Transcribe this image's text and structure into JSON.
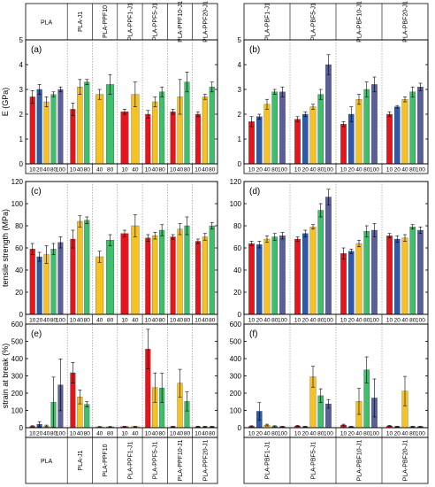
{
  "figure": {
    "left_groups": [
      "PLA",
      "PLA-J1",
      "PLA-PPF10",
      "PLA-PPF1-J1",
      "PLA-PPF5-J1",
      "PLA-PPF10-J1",
      "PLA-PPF20-J1"
    ],
    "right_groups": [
      "PLA-PBF1-J1",
      "PLA-PBF5-J1",
      "PLA-PBF10-J1",
      "PLA-PBF20-J1"
    ],
    "legend_colors": {
      "10": "#e8141c",
      "20": "#2e5aa8",
      "40": "#f7c21e",
      "80": "#3dbf6b",
      "100": "#5a5f9c"
    }
  },
  "chart_data": [
    {
      "type": "bar",
      "panel": "(a)",
      "ylabel": "E (GPa)",
      "ylim": [
        0,
        5
      ],
      "yticks": [
        0,
        1,
        2,
        3,
        4,
        5
      ],
      "groups": [
        {
          "name": "PLA",
          "bars": [
            {
              "x": "10",
              "v": 2.7,
              "e": 0.25
            },
            {
              "x": "20",
              "v": 3.0,
              "e": 0.2
            },
            {
              "x": "40",
              "v": 2.5,
              "e": 0.2
            },
            {
              "x": "80",
              "v": 2.8,
              "e": 0.1
            },
            {
              "x": "100",
              "v": 3.0,
              "e": 0.1
            }
          ]
        },
        {
          "name": "PLA-J1",
          "bars": [
            {
              "x": "10",
              "v": 2.2,
              "e": 0.25
            },
            {
              "x": "40",
              "v": 3.1,
              "e": 0.3
            },
            {
              "x": "80",
              "v": 3.3,
              "e": 0.1
            }
          ]
        },
        {
          "name": "PLA-PPF10",
          "bars": [
            {
              "x": "40",
              "v": 2.8,
              "e": 0.2
            },
            {
              "x": "80",
              "v": 3.2,
              "e": 0.4
            }
          ]
        },
        {
          "name": "PLA-PPF1-J1",
          "bars": [
            {
              "x": "10",
              "v": 2.1,
              "e": 0.1
            },
            {
              "x": "40",
              "v": 2.8,
              "e": 0.5
            }
          ]
        },
        {
          "name": "PLA-PPF5-J1",
          "bars": [
            {
              "x": "10",
              "v": 2.0,
              "e": 0.15
            },
            {
              "x": "40",
              "v": 2.5,
              "e": 0.2
            },
            {
              "x": "80",
              "v": 2.9,
              "e": 0.2
            }
          ]
        },
        {
          "name": "PLA-PPF10-J1",
          "bars": [
            {
              "x": "10",
              "v": 2.1,
              "e": 0.1
            },
            {
              "x": "40",
              "v": 2.7,
              "e": 0.7
            },
            {
              "x": "80",
              "v": 3.3,
              "e": 0.4
            }
          ]
        },
        {
          "name": "PLA-PPF20-J1",
          "bars": [
            {
              "x": "10",
              "v": 2.0,
              "e": 0.1
            },
            {
              "x": "40",
              "v": 2.7,
              "e": 0.1
            },
            {
              "x": "80",
              "v": 3.1,
              "e": 0.2
            }
          ]
        }
      ]
    },
    {
      "type": "bar",
      "panel": "(b)",
      "ylabel": "",
      "ylim": [
        0,
        5
      ],
      "yticks": [
        0,
        1,
        2,
        3,
        4,
        5
      ],
      "groups": [
        {
          "name": "PLA-PBF1-J1",
          "bars": [
            {
              "x": "10",
              "v": 1.7,
              "e": 0.2
            },
            {
              "x": "20",
              "v": 1.9,
              "e": 0.1
            },
            {
              "x": "40",
              "v": 2.4,
              "e": 0.2
            },
            {
              "x": "80",
              "v": 2.9,
              "e": 0.1
            },
            {
              "x": "100",
              "v": 2.9,
              "e": 0.2
            }
          ]
        },
        {
          "name": "PLA-PBF5-J1",
          "bars": [
            {
              "x": "10",
              "v": 1.8,
              "e": 0.1
            },
            {
              "x": "20",
              "v": 2.0,
              "e": 0.1
            },
            {
              "x": "40",
              "v": 2.3,
              "e": 0.1
            },
            {
              "x": "80",
              "v": 2.8,
              "e": 0.2
            },
            {
              "x": "100",
              "v": 4.0,
              "e": 0.4
            }
          ]
        },
        {
          "name": "PLA-PBF10-J1",
          "bars": [
            {
              "x": "10",
              "v": 1.6,
              "e": 0.1
            },
            {
              "x": "20",
              "v": 2.0,
              "e": 0.3
            },
            {
              "x": "40",
              "v": 2.6,
              "e": 0.2
            },
            {
              "x": "80",
              "v": 3.0,
              "e": 0.3
            },
            {
              "x": "100",
              "v": 3.2,
              "e": 0.3
            }
          ]
        },
        {
          "name": "PLA-PBF20-J1",
          "bars": [
            {
              "x": "10",
              "v": 2.0,
              "e": 0.1
            },
            {
              "x": "20",
              "v": 2.3,
              "e": 0.05
            },
            {
              "x": "40",
              "v": 2.6,
              "e": 0.1
            },
            {
              "x": "80",
              "v": 2.9,
              "e": 0.2
            },
            {
              "x": "100",
              "v": 3.1,
              "e": 0.15
            }
          ]
        }
      ]
    },
    {
      "type": "bar",
      "panel": "(c)",
      "ylabel": "tensile strength (MPa)",
      "ylim": [
        0,
        120
      ],
      "yticks": [
        0,
        20,
        40,
        60,
        80,
        100,
        120
      ],
      "groups": [
        {
          "name": "PLA",
          "bars": [
            {
              "x": "10",
              "v": 59,
              "e": 5
            },
            {
              "x": "20",
              "v": 52,
              "e": 4
            },
            {
              "x": "40",
              "v": 54,
              "e": 8
            },
            {
              "x": "80",
              "v": 59,
              "e": 5
            },
            {
              "x": "100",
              "v": 65,
              "e": 5
            }
          ]
        },
        {
          "name": "PLA-J1",
          "bars": [
            {
              "x": "10",
              "v": 68,
              "e": 8
            },
            {
              "x": "40",
              "v": 84,
              "e": 5
            },
            {
              "x": "80",
              "v": 85,
              "e": 3
            }
          ]
        },
        {
          "name": "PLA-PPF10",
          "bars": [
            {
              "x": "40",
              "v": 52,
              "e": 5
            },
            {
              "x": "80",
              "v": 67,
              "e": 5
            }
          ]
        },
        {
          "name": "PLA-PPF1-J1",
          "bars": [
            {
              "x": "10",
              "v": 73,
              "e": 3
            },
            {
              "x": "40",
              "v": 80,
              "e": 10
            }
          ]
        },
        {
          "name": "PLA-PPF5-J1",
          "bars": [
            {
              "x": "10",
              "v": 69,
              "e": 3
            },
            {
              "x": "40",
              "v": 71,
              "e": 3
            },
            {
              "x": "80",
              "v": 76,
              "e": 5
            }
          ]
        },
        {
          "name": "PLA-PPF10-J1",
          "bars": [
            {
              "x": "10",
              "v": 70,
              "e": 2
            },
            {
              "x": "40",
              "v": 77,
              "e": 5
            },
            {
              "x": "80",
              "v": 80,
              "e": 8
            }
          ]
        },
        {
          "name": "PLA-PPF20-J1",
          "bars": [
            {
              "x": "10",
              "v": 66,
              "e": 2
            },
            {
              "x": "40",
              "v": 70,
              "e": 3
            },
            {
              "x": "80",
              "v": 80,
              "e": 3
            }
          ]
        }
      ]
    },
    {
      "type": "bar",
      "panel": "(d)",
      "ylabel": "",
      "ylim": [
        0,
        120
      ],
      "yticks": [
        0,
        20,
        40,
        60,
        80,
        100,
        120
      ],
      "groups": [
        {
          "name": "PLA-PBF1-J1",
          "bars": [
            {
              "x": "10",
              "v": 64,
              "e": 2
            },
            {
              "x": "20",
              "v": 63,
              "e": 3
            },
            {
              "x": "40",
              "v": 68,
              "e": 3
            },
            {
              "x": "80",
              "v": 70,
              "e": 3
            },
            {
              "x": "100",
              "v": 71,
              "e": 3
            }
          ]
        },
        {
          "name": "PLA-PBF5-J1",
          "bars": [
            {
              "x": "10",
              "v": 68,
              "e": 2
            },
            {
              "x": "20",
              "v": 73,
              "e": 3
            },
            {
              "x": "40",
              "v": 79,
              "e": 2
            },
            {
              "x": "80",
              "v": 94,
              "e": 6
            },
            {
              "x": "100",
              "v": 106,
              "e": 7
            }
          ]
        },
        {
          "name": "PLA-PBF10-J1",
          "bars": [
            {
              "x": "10",
              "v": 55,
              "e": 5
            },
            {
              "x": "20",
              "v": 57,
              "e": 2
            },
            {
              "x": "40",
              "v": 64,
              "e": 3
            },
            {
              "x": "80",
              "v": 75,
              "e": 5
            },
            {
              "x": "100",
              "v": 76,
              "e": 6
            }
          ]
        },
        {
          "name": "PLA-PBF20-J1",
          "bars": [
            {
              "x": "10",
              "v": 71,
              "e": 2
            },
            {
              "x": "20",
              "v": 68,
              "e": 3
            },
            {
              "x": "40",
              "v": 69,
              "e": 3
            },
            {
              "x": "80",
              "v": 79,
              "e": 2
            },
            {
              "x": "100",
              "v": 76,
              "e": 3
            }
          ]
        }
      ]
    },
    {
      "type": "bar",
      "panel": "(e)",
      "ylabel": "strain at break (%)",
      "ylim": [
        0,
        600
      ],
      "yticks": [
        0,
        100,
        200,
        300,
        400,
        500,
        600
      ],
      "groups": [
        {
          "name": "PLA",
          "bars": [
            {
              "x": "10",
              "v": 8,
              "e": 3
            },
            {
              "x": "20",
              "v": 20,
              "e": 15
            },
            {
              "x": "40",
              "v": 10,
              "e": 5
            },
            {
              "x": "80",
              "v": 148,
              "e": 145
            },
            {
              "x": "100",
              "v": 248,
              "e": 150
            }
          ]
        },
        {
          "name": "PLA-J1",
          "bars": [
            {
              "x": "10",
              "v": 318,
              "e": 60
            },
            {
              "x": "40",
              "v": 178,
              "e": 40
            },
            {
              "x": "80",
              "v": 135,
              "e": 15
            }
          ]
        },
        {
          "name": "PLA-PPF10",
          "bars": [
            {
              "x": "40",
              "v": 5,
              "e": 2
            },
            {
              "x": "80",
              "v": 5,
              "e": 2
            }
          ]
        },
        {
          "name": "PLA-PPF1-J1",
          "bars": [
            {
              "x": "10",
              "v": 6,
              "e": 2
            },
            {
              "x": "40",
              "v": 6,
              "e": 2
            }
          ]
        },
        {
          "name": "PLA-PPF5-J1",
          "bars": [
            {
              "x": "10",
              "v": 455,
              "e": 115
            },
            {
              "x": "40",
              "v": 232,
              "e": 85
            },
            {
              "x": "80",
              "v": 230,
              "e": 85
            }
          ]
        },
        {
          "name": "PLA-PPF10-J1",
          "bars": [
            {
              "x": "10",
              "v": 6,
              "e": 2
            },
            {
              "x": "40",
              "v": 258,
              "e": 80
            },
            {
              "x": "80",
              "v": 152,
              "e": 55
            }
          ]
        },
        {
          "name": "PLA-PPF20-J1",
          "bars": [
            {
              "x": "10",
              "v": 6,
              "e": 2
            },
            {
              "x": "40",
              "v": 6,
              "e": 2
            },
            {
              "x": "80",
              "v": 6,
              "e": 2
            }
          ]
        }
      ]
    },
    {
      "type": "bar",
      "panel": "(f)",
      "ylabel": "",
      "ylim": [
        0,
        600
      ],
      "yticks": [
        0,
        100,
        200,
        300,
        400,
        500,
        600
      ],
      "groups": [
        {
          "name": "PLA-PBF1-J1",
          "bars": [
            {
              "x": "10",
              "v": 8,
              "e": 3
            },
            {
              "x": "20",
              "v": 95,
              "e": 50
            },
            {
              "x": "40",
              "v": 15,
              "e": 5
            },
            {
              "x": "80",
              "v": 8,
              "e": 3
            },
            {
              "x": "100",
              "v": 6,
              "e": 2
            }
          ]
        },
        {
          "name": "PLA-PBF5-J1",
          "bars": [
            {
              "x": "10",
              "v": 10,
              "e": 3
            },
            {
              "x": "20",
              "v": 6,
              "e": 2
            },
            {
              "x": "40",
              "v": 295,
              "e": 60
            },
            {
              "x": "80",
              "v": 185,
              "e": 40
            },
            {
              "x": "100",
              "v": 138,
              "e": 25
            }
          ]
        },
        {
          "name": "PLA-PBF10-J1",
          "bars": [
            {
              "x": "10",
              "v": 15,
              "e": 5
            },
            {
              "x": "20",
              "v": 6,
              "e": 2
            },
            {
              "x": "40",
              "v": 152,
              "e": 75
            },
            {
              "x": "80",
              "v": 335,
              "e": 75
            },
            {
              "x": "100",
              "v": 172,
              "e": 110
            }
          ]
        },
        {
          "name": "PLA-PBF20-J1",
          "bars": [
            {
              "x": "10",
              "v": 10,
              "e": 3
            },
            {
              "x": "20",
              "v": 6,
              "e": 2
            },
            {
              "x": "40",
              "v": 212,
              "e": 85
            },
            {
              "x": "80",
              "v": 6,
              "e": 2
            },
            {
              "x": "100",
              "v": 6,
              "e": 2
            }
          ]
        }
      ]
    }
  ]
}
